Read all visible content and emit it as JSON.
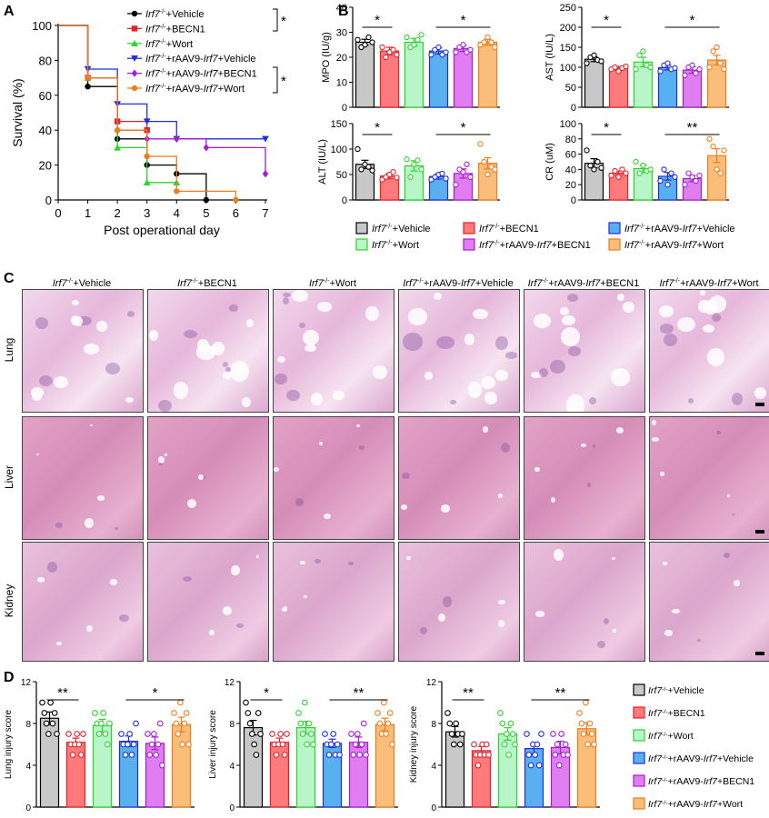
{
  "panel_labels": {
    "a": "A",
    "b": "B",
    "c": "C",
    "d": "D"
  },
  "groups": [
    {
      "sup": "-/-",
      "pre": "Irf7",
      "mid": "",
      "italic2": "",
      "post": "+Vehicle",
      "color": "#000000",
      "fill": "#c8c8c8",
      "marker": "circle"
    },
    {
      "sup": "-/-",
      "pre": "Irf7",
      "mid": "",
      "italic2": "",
      "post": "+BECN1",
      "color": "#e8202a",
      "fill": "#ff7b7b",
      "marker": "square"
    },
    {
      "sup": "-/-",
      "pre": "Irf7",
      "mid": "",
      "italic2": "",
      "post": "+Wort",
      "color": "#2bd62b",
      "fill": "#b8f5c8",
      "marker": "triangle-up"
    },
    {
      "sup": "-/-",
      "pre": "Irf7",
      "mid": "+rAAV9-",
      "italic2": "Irf7",
      "post": "+Vehicle",
      "color": "#1f2fe0",
      "fill": "#59b0ee",
      "marker": "triangle-down"
    },
    {
      "sup": "-/-",
      "pre": "Irf7",
      "mid": "+rAAV9-",
      "italic2": "Irf7",
      "post": "+BECN1",
      "color": "#a61cd6",
      "fill": "#e07df0",
      "marker": "diamond"
    },
    {
      "sup": "-/-",
      "pre": "Irf7",
      "mid": "+rAAV9-",
      "italic2": "Irf7",
      "post": "+Wort",
      "color": "#f07c1c",
      "fill": "#fbbd7a",
      "marker": "circle"
    }
  ],
  "sig_a": [
    "*",
    "*"
  ],
  "chart_data": [
    {
      "panel": "A",
      "type": "line",
      "subtype": "kaplan-meier",
      "xlabel": "Post operational day",
      "ylabel": "Survival (%)",
      "xlim": [
        0,
        7
      ],
      "ylim": [
        0,
        100
      ],
      "xticks": [
        0,
        1,
        2,
        3,
        4,
        5,
        6,
        7
      ],
      "yticks": [
        0,
        20,
        40,
        60,
        80,
        100
      ],
      "series": [
        {
          "points": [
            [
              0,
              100
            ],
            [
              1,
              65
            ],
            [
              2,
              35
            ],
            [
              3,
              20
            ],
            [
              4,
              15
            ],
            [
              5,
              0
            ]
          ]
        },
        {
          "points": [
            [
              0,
              100
            ],
            [
              1,
              70
            ],
            [
              2,
              45
            ],
            [
              3,
              40
            ]
          ]
        },
        {
          "points": [
            [
              0,
              100
            ],
            [
              1,
              70
            ],
            [
              2,
              30
            ],
            [
              3,
              10
            ],
            [
              4,
              10
            ]
          ]
        },
        {
          "points": [
            [
              0,
              100
            ],
            [
              1,
              75
            ],
            [
              2,
              55
            ],
            [
              3,
              45
            ],
            [
              4,
              35
            ],
            [
              7,
              35
            ]
          ]
        },
        {
          "points": [
            [
              0,
              100
            ],
            [
              1,
              70
            ],
            [
              2,
              40
            ],
            [
              3,
              35
            ],
            [
              4,
              35
            ],
            [
              5,
              30
            ],
            [
              7,
              15
            ]
          ]
        },
        {
          "points": [
            [
              0,
              100
            ],
            [
              1,
              70
            ],
            [
              2,
              40
            ],
            [
              3,
              25
            ],
            [
              4,
              5
            ],
            [
              6,
              0
            ]
          ]
        }
      ]
    },
    {
      "panel": "B1",
      "type": "bar",
      "ylabel": "MPO (IU/g)",
      "ylim": [
        0,
        40
      ],
      "yticks": [
        0,
        10,
        20,
        30,
        40
      ],
      "values": [
        26,
        22.5,
        26,
        22.5,
        23.5,
        26
      ],
      "errors": [
        1.2,
        1.5,
        1.5,
        1.2,
        1.2,
        1.2
      ],
      "points": [
        [
          27,
          24,
          25,
          28,
          26
        ],
        [
          24,
          20,
          22,
          23,
          21
        ],
        [
          28,
          24,
          25,
          27,
          29
        ],
        [
          21,
          23,
          24,
          21,
          22
        ],
        [
          22,
          24,
          25,
          22,
          23
        ],
        [
          25,
          26,
          28,
          26,
          24
        ]
      ],
      "sig": [
        {
          "from": 0,
          "to": 1,
          "label": "*"
        },
        {
          "from": 3,
          "to": 5,
          "label": "*"
        }
      ]
    },
    {
      "panel": "B2",
      "type": "bar",
      "ylabel": "AST (IU/L)",
      "ylim": [
        0,
        250
      ],
      "yticks": [
        0,
        50,
        100,
        150,
        200,
        250
      ],
      "values": [
        120,
        97,
        113,
        99,
        93,
        118
      ],
      "errors": [
        6,
        5,
        12,
        6,
        8,
        12
      ],
      "points": [
        [
          110,
          125,
          130,
          118,
          115
        ],
        [
          95,
          100,
          90,
          98,
          102
        ],
        [
          95,
          130,
          140,
          105,
          100
        ],
        [
          90,
          105,
          110,
          95,
          98
        ],
        [
          80,
          100,
          105,
          85,
          95
        ],
        [
          100,
          140,
          150,
          110,
          95
        ]
      ],
      "sig": [
        {
          "from": 0,
          "to": 1,
          "label": "*"
        },
        {
          "from": 3,
          "to": 5,
          "label": "*"
        }
      ]
    },
    {
      "panel": "B3",
      "type": "bar",
      "ylabel": "ALT (IU/L)",
      "ylim": [
        0,
        150
      ],
      "yticks": [
        0,
        50,
        100,
        150
      ],
      "values": [
        70,
        47,
        67,
        46,
        52,
        72
      ],
      "errors": [
        8,
        5,
        10,
        5,
        9,
        11
      ],
      "points": [
        [
          100,
          60,
          70,
          65,
          58
        ],
        [
          40,
          45,
          50,
          55,
          44
        ],
        [
          80,
          45,
          70,
          78,
          60
        ],
        [
          40,
          45,
          50,
          52,
          42
        ],
        [
          30,
          60,
          55,
          70,
          45
        ],
        [
          110,
          75,
          50,
          65,
          60
        ]
      ],
      "sig": [
        {
          "from": 0,
          "to": 1,
          "label": "*"
        },
        {
          "from": 3,
          "to": 5,
          "label": "*"
        }
      ]
    },
    {
      "panel": "B4",
      "type": "bar",
      "ylabel": "CR (uM)",
      "ylim": [
        0,
        100
      ],
      "yticks": [
        0,
        20,
        40,
        60,
        80,
        100
      ],
      "values": [
        48,
        35,
        41,
        31,
        28,
        58
      ],
      "errors": [
        6,
        3,
        5,
        5,
        4,
        9
      ],
      "points": [
        [
          65,
          45,
          40,
          50,
          42
        ],
        [
          32,
          38,
          30,
          40,
          35
        ],
        [
          50,
          35,
          45,
          38,
          40
        ],
        [
          25,
          40,
          20,
          35,
          30
        ],
        [
          20,
          35,
          30,
          25,
          32
        ],
        [
          80,
          70,
          40,
          35,
          65
        ]
      ],
      "sig": [
        {
          "from": 0,
          "to": 1,
          "label": "*"
        },
        {
          "from": 3,
          "to": 5,
          "label": "**"
        }
      ]
    },
    {
      "panel": "D1",
      "type": "bar",
      "ylabel": "Lung injury score",
      "ylim": [
        0,
        12
      ],
      "yticks": [
        0,
        4,
        8,
        12
      ],
      "values": [
        8.5,
        6.2,
        7.8,
        6.3,
        6.1,
        7.9
      ],
      "errors": [
        0.6,
        0.4,
        0.6,
        0.5,
        0.6,
        0.7
      ],
      "points": [
        [
          10,
          9,
          8,
          7,
          10,
          8,
          9,
          7
        ],
        [
          7,
          6,
          5,
          6,
          7,
          6,
          5,
          7
        ],
        [
          9,
          8,
          7,
          8,
          9,
          7,
          6,
          8
        ],
        [
          7,
          6,
          5,
          6,
          7,
          5,
          6,
          8
        ],
        [
          7,
          5,
          6,
          7,
          5,
          6,
          8,
          4
        ],
        [
          9,
          8,
          7,
          10,
          6,
          8,
          9,
          6
        ]
      ],
      "sig": [
        {
          "from": 0,
          "to": 1,
          "label": "**"
        },
        {
          "from": 3,
          "to": 5,
          "label": "*"
        }
      ]
    },
    {
      "panel": "D2",
      "type": "bar",
      "ylabel": "Liver injury score",
      "ylim": [
        0,
        12
      ],
      "yticks": [
        0,
        4,
        8,
        12
      ],
      "values": [
        7.6,
        6.2,
        7.6,
        6.1,
        6.2,
        7.9
      ],
      "errors": [
        0.7,
        0.4,
        0.6,
        0.4,
        0.5,
        0.6
      ],
      "points": [
        [
          10,
          9,
          8,
          7,
          6,
          5,
          9,
          7
        ],
        [
          7,
          6,
          5,
          6,
          7,
          6,
          5,
          7
        ],
        [
          9,
          8,
          7,
          10,
          6,
          8,
          7,
          6
        ],
        [
          7,
          6,
          5,
          6,
          7,
          5,
          6,
          5
        ],
        [
          7,
          5,
          6,
          7,
          5,
          6,
          8,
          5
        ],
        [
          9,
          8,
          7,
          10,
          7,
          8,
          9,
          6
        ]
      ],
      "sig": [
        {
          "from": 0,
          "to": 1,
          "label": "*"
        },
        {
          "from": 3,
          "to": 5,
          "label": "**"
        }
      ]
    },
    {
      "panel": "D3",
      "type": "bar",
      "ylabel": "Kidney injury score",
      "ylim": [
        0,
        12
      ],
      "yticks": [
        0,
        4,
        8,
        12
      ],
      "values": [
        7.2,
        5.4,
        7.0,
        5.6,
        5.7,
        7.5
      ],
      "errors": [
        0.5,
        0.4,
        0.6,
        0.5,
        0.6,
        0.6
      ],
      "points": [
        [
          9,
          8,
          7,
          6,
          8,
          7,
          6,
          7
        ],
        [
          6,
          5,
          4,
          5,
          6,
          5,
          6,
          5
        ],
        [
          9,
          8,
          6,
          7,
          5,
          8,
          7,
          6
        ],
        [
          7,
          5,
          4,
          6,
          5,
          6,
          4,
          7
        ],
        [
          7,
          5,
          6,
          4,
          7,
          5,
          6,
          5
        ],
        [
          9,
          8,
          7,
          10,
          6,
          8,
          7,
          6
        ]
      ],
      "sig": [
        {
          "from": 0,
          "to": 1,
          "label": "**"
        },
        {
          "from": 3,
          "to": 5,
          "label": "**"
        }
      ]
    }
  ],
  "histology": {
    "rows": [
      "Lung",
      "Liver",
      "Kidney"
    ]
  }
}
